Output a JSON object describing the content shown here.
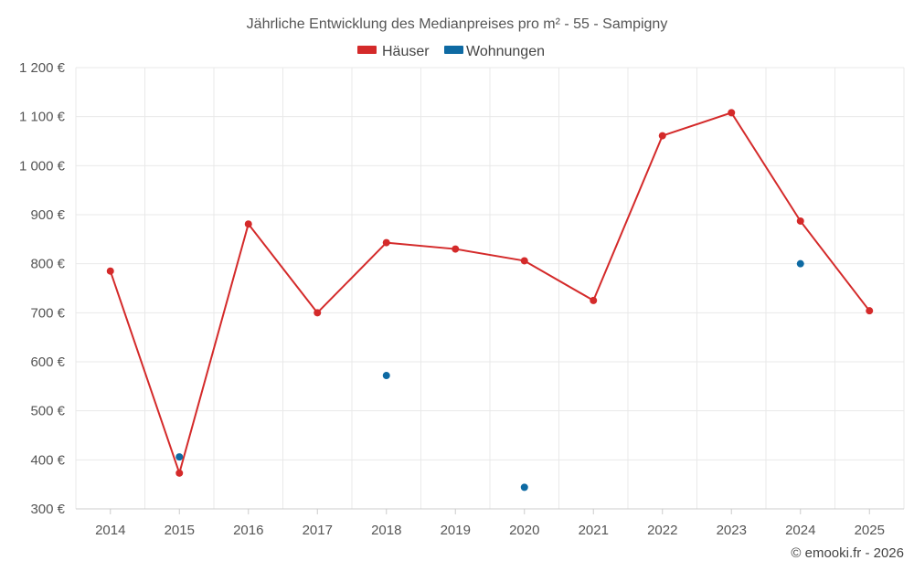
{
  "chart_data": {
    "type": "line",
    "title": "Jährliche Entwicklung des Medianpreises pro m² - 55 - Sampigny",
    "categories": [
      "2014",
      "2015",
      "2016",
      "2017",
      "2018",
      "2019",
      "2020",
      "2021",
      "2022",
      "2023",
      "2024",
      "2025"
    ],
    "y_ticks": [
      300,
      400,
      500,
      600,
      700,
      800,
      900,
      1000,
      1100,
      1200
    ],
    "y_tick_labels": [
      "300 €",
      "400 €",
      "500 €",
      "600 €",
      "700 €",
      "800 €",
      "900 €",
      "1 000 €",
      "1 100 €",
      "1 200 €"
    ],
    "ylim": [
      300,
      1200
    ],
    "grid": true,
    "legend_position": "top-center",
    "series": [
      {
        "name": "Häuser",
        "color": "#d42a2a",
        "line": true,
        "values": [
          785,
          373,
          881,
          700,
          843,
          830,
          806,
          725,
          1061,
          1108,
          887,
          704
        ]
      },
      {
        "name": "Wohnungen",
        "color": "#0e6aa3",
        "line": false,
        "values": [
          null,
          406,
          null,
          null,
          572,
          null,
          344,
          null,
          null,
          null,
          800,
          null
        ]
      }
    ]
  },
  "credit": "© emooki.fr - 2026"
}
